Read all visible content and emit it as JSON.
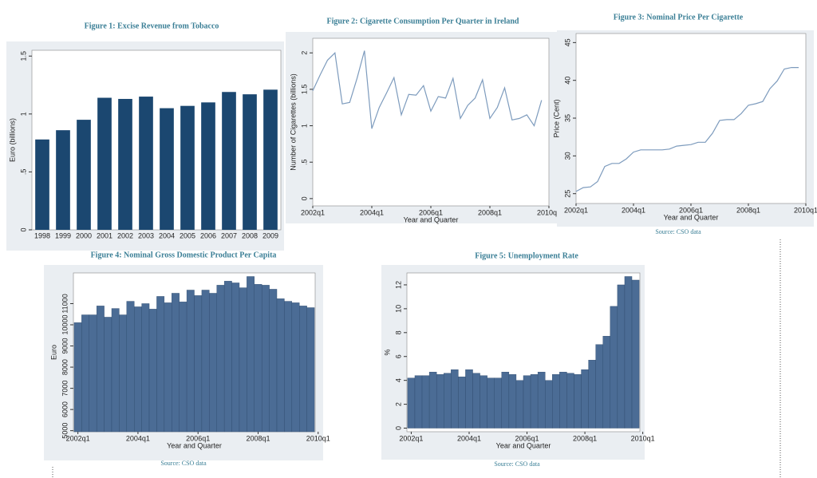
{
  "chart_data": [
    {
      "type": "bar",
      "title": "Figure 1: Excise Revenue from Tobacco",
      "y_label": "Euro (billions)",
      "color": "#1b4770",
      "categories": [
        "1998",
        "1999",
        "2000",
        "2001",
        "2002",
        "2003",
        "2004",
        "2005",
        "2006",
        "2007",
        "2008",
        "2009"
      ],
      "values": [
        0.78,
        0.86,
        0.95,
        1.14,
        1.13,
        1.15,
        1.05,
        1.07,
        1.1,
        1.19,
        1.17,
        1.21
      ],
      "ylim": [
        0,
        1.55
      ],
      "yticks": [
        0,
        {
          "value": 0.5,
          "label": ".5"
        },
        1,
        1.5
      ]
    },
    {
      "type": "line",
      "title": "Figure 2: Cigarette Consumption Per Quarter in Ireland",
      "y_label": "Number of Cigarettes (billions)",
      "x_label": "Year and Quarter",
      "color": "#7d9bbd",
      "x": [
        2002,
        2002.25,
        2002.5,
        2002.75,
        2003,
        2003.25,
        2003.5,
        2003.75,
        2004,
        2004.25,
        2004.5,
        2004.75,
        2005,
        2005.25,
        2005.5,
        2005.75,
        2006,
        2006.25,
        2006.5,
        2006.75,
        2007,
        2007.25,
        2007.5,
        2007.75,
        2008,
        2008.25,
        2008.5,
        2008.75,
        2009,
        2009.25,
        2009.5,
        2009.75
      ],
      "values": [
        1.48,
        1.7,
        1.9,
        2.0,
        1.3,
        1.32,
        1.65,
        2.03,
        0.96,
        1.25,
        1.45,
        1.66,
        1.15,
        1.43,
        1.42,
        1.55,
        1.2,
        1.4,
        1.38,
        1.65,
        1.1,
        1.28,
        1.38,
        1.63,
        1.1,
        1.25,
        1.52,
        1.08,
        1.1,
        1.15,
        1.0,
        1.35
      ],
      "xlim": [
        2002,
        2010
      ],
      "xticks": [
        {
          "value": 2002,
          "label": "2002q1"
        },
        {
          "value": 2004,
          "label": "2004q1"
        },
        {
          "value": 2006,
          "label": "2006q1"
        },
        {
          "value": 2008,
          "label": "2008q1"
        },
        {
          "value": 2010,
          "label": "2010q1"
        }
      ],
      "ylim": [
        -0.1,
        2.2
      ],
      "yticks": [
        0,
        {
          "value": 0.5,
          "label": ".5"
        },
        1,
        1.5,
        2
      ]
    },
    {
      "type": "line",
      "title": "Figure 3: Nominal Price Per Cigarette",
      "y_label": "Price (Cent)",
      "x_label": "Year and Quarter",
      "source": "Source: CSO data",
      "color": "#7d9bbd",
      "x": [
        2002,
        2002.25,
        2002.5,
        2002.75,
        2003,
        2003.25,
        2003.5,
        2003.75,
        2004,
        2004.25,
        2004.5,
        2004.75,
        2005,
        2005.25,
        2005.5,
        2005.75,
        2006,
        2006.25,
        2006.5,
        2006.75,
        2007,
        2007.25,
        2007.5,
        2007.75,
        2008,
        2008.25,
        2008.5,
        2008.75,
        2009,
        2009.25,
        2009.5,
        2009.75
      ],
      "values": [
        25.3,
        25.8,
        25.9,
        26.6,
        28.6,
        29.0,
        29.0,
        29.6,
        30.5,
        30.8,
        30.8,
        30.8,
        30.8,
        30.9,
        31.3,
        31.4,
        31.5,
        31.8,
        31.8,
        33.0,
        34.7,
        34.8,
        34.8,
        35.6,
        36.7,
        36.9,
        37.2,
        38.9,
        39.9,
        41.5,
        41.7,
        41.7
      ],
      "xlim": [
        2002,
        2010
      ],
      "xticks": [
        {
          "value": 2002,
          "label": "2002q1"
        },
        {
          "value": 2004,
          "label": "2004q1"
        },
        {
          "value": 2006,
          "label": "2006q1"
        },
        {
          "value": 2008,
          "label": "2008q1"
        },
        {
          "value": 2010,
          "label": "2010q1"
        }
      ],
      "ylim": [
        23.7,
        46.2
      ],
      "yticks": [
        25,
        30,
        35,
        40,
        45
      ]
    },
    {
      "type": "bar",
      "title": "Figure 4: Nominal Gross Domestic Product Per Capita",
      "y_label": "Euro",
      "x_label": "Year and Quarter",
      "source": "Source: CSO data",
      "color": "#4b6c95",
      "x": [
        2002,
        2002.25,
        2002.5,
        2002.75,
        2003,
        2003.25,
        2003.5,
        2003.75,
        2004,
        2004.25,
        2004.5,
        2004.75,
        2005,
        2005.25,
        2005.5,
        2005.75,
        2006,
        2006.25,
        2006.5,
        2006.75,
        2007,
        2007.25,
        2007.5,
        2007.75,
        2008,
        2008.25,
        2008.5,
        2008.75,
        2009,
        2009.25,
        2009.5,
        2009.75
      ],
      "values": [
        10100,
        10470,
        10470,
        10890,
        10360,
        10770,
        10470,
        11110,
        10850,
        11000,
        10740,
        11340,
        11040,
        11490,
        11080,
        11640,
        11380,
        11640,
        11490,
        11870,
        12060,
        11980,
        11750,
        12280,
        11910,
        11870,
        11680,
        11230,
        11110,
        11040,
        10890,
        10810
      ],
      "xlim": [
        2001.85,
        2009.9
      ],
      "xticks": [
        {
          "value": 2002,
          "label": "2002q1"
        },
        {
          "value": 2004,
          "label": "2004q1"
        },
        {
          "value": 2006,
          "label": "2006q1"
        },
        {
          "value": 2008,
          "label": "2008q1"
        },
        {
          "value": 2010,
          "label": "2010q1"
        }
      ],
      "ylim": [
        4950,
        12450
      ],
      "yticks": [
        5000,
        6000,
        7000,
        8000,
        9000,
        10000,
        11000
      ]
    },
    {
      "type": "bar",
      "title": "Figure 5: Unemployment Rate",
      "y_label": "%",
      "x_label": "Year and Quarter",
      "source": "Source: CSO data",
      "color": "#4b6c95",
      "x": [
        2002,
        2002.25,
        2002.5,
        2002.75,
        2003,
        2003.25,
        2003.5,
        2003.75,
        2004,
        2004.25,
        2004.5,
        2004.75,
        2005,
        2005.25,
        2005.5,
        2005.75,
        2006,
        2006.25,
        2006.5,
        2006.75,
        2007,
        2007.25,
        2007.5,
        2007.75,
        2008,
        2008.25,
        2008.5,
        2008.75,
        2009,
        2009.25,
        2009.5,
        2009.75
      ],
      "values": [
        4.2,
        4.4,
        4.4,
        4.7,
        4.5,
        4.6,
        4.9,
        4.3,
        4.9,
        4.6,
        4.4,
        4.2,
        4.2,
        4.7,
        4.5,
        4.0,
        4.4,
        4.5,
        4.7,
        4.0,
        4.5,
        4.7,
        4.6,
        4.5,
        4.9,
        5.7,
        7.0,
        7.7,
        10.2,
        12.0,
        12.7,
        12.4
      ],
      "xlim": [
        2001.85,
        2009.9
      ],
      "xticks": [
        {
          "value": 2002,
          "label": "2002q1"
        },
        {
          "value": 2004,
          "label": "2004q1"
        },
        {
          "value": 2006,
          "label": "2006q1"
        },
        {
          "value": 2008,
          "label": "2008q1"
        },
        {
          "value": 2010,
          "label": "2010q1"
        }
      ],
      "ylim": [
        -0.3,
        13
      ],
      "yticks": [
        0,
        2,
        4,
        6,
        8,
        10,
        12
      ]
    }
  ]
}
